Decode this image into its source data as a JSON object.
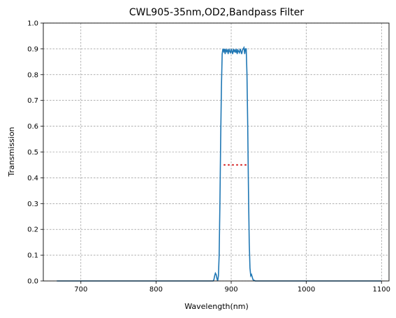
{
  "chart_data": {
    "type": "line",
    "title": "CWL905-35nm,OD2,Bandpass Filter",
    "xlabel": "Wavelength(nm)",
    "ylabel": "Transmission",
    "xlim": [
      650,
      1110
    ],
    "ylim": [
      0,
      1.0
    ],
    "grid": true,
    "x_ticks": [
      700,
      800,
      900,
      1000,
      1100
    ],
    "y_ticks": [
      0.0,
      0.1,
      0.2,
      0.3,
      0.4,
      0.5,
      0.6,
      0.7,
      0.8,
      0.9,
      1.0
    ],
    "colors": {
      "series": "#1f77b4",
      "fwhm_marker": "#d62728",
      "grid": "#808080"
    },
    "series": [
      {
        "x": [
          668,
          870,
          876,
          877,
          878,
          879,
          880,
          881,
          882,
          883,
          884,
          885,
          886,
          887,
          888,
          889,
          890,
          891,
          892,
          893,
          894,
          895,
          896,
          897,
          898,
          899,
          900,
          901,
          902,
          903,
          904,
          905,
          906,
          907,
          908,
          909,
          910,
          911,
          912,
          913,
          914,
          915,
          916,
          917,
          918,
          919,
          920,
          921,
          922,
          923,
          924,
          925,
          926,
          927,
          928,
          929,
          930,
          932,
          935,
          1100
        ],
        "y": [
          0.0,
          0.0,
          0.0,
          0.005,
          0.02,
          0.03,
          0.025,
          0.01,
          0.0,
          0.02,
          0.1,
          0.3,
          0.55,
          0.75,
          0.88,
          0.9,
          0.89,
          0.9,
          0.88,
          0.9,
          0.89,
          0.895,
          0.88,
          0.9,
          0.89,
          0.885,
          0.9,
          0.89,
          0.88,
          0.9,
          0.89,
          0.895,
          0.885,
          0.9,
          0.88,
          0.895,
          0.89,
          0.885,
          0.9,
          0.89,
          0.88,
          0.895,
          0.9,
          0.905,
          0.88,
          0.9,
          0.9,
          0.8,
          0.6,
          0.35,
          0.15,
          0.05,
          0.02,
          0.025,
          0.015,
          0.005,
          0.003,
          0.0,
          0.0,
          0.0
        ]
      }
    ],
    "fwhm_marker": {
      "x_start": 890,
      "x_end": 922,
      "y": 0.45,
      "style": "dotted"
    }
  }
}
